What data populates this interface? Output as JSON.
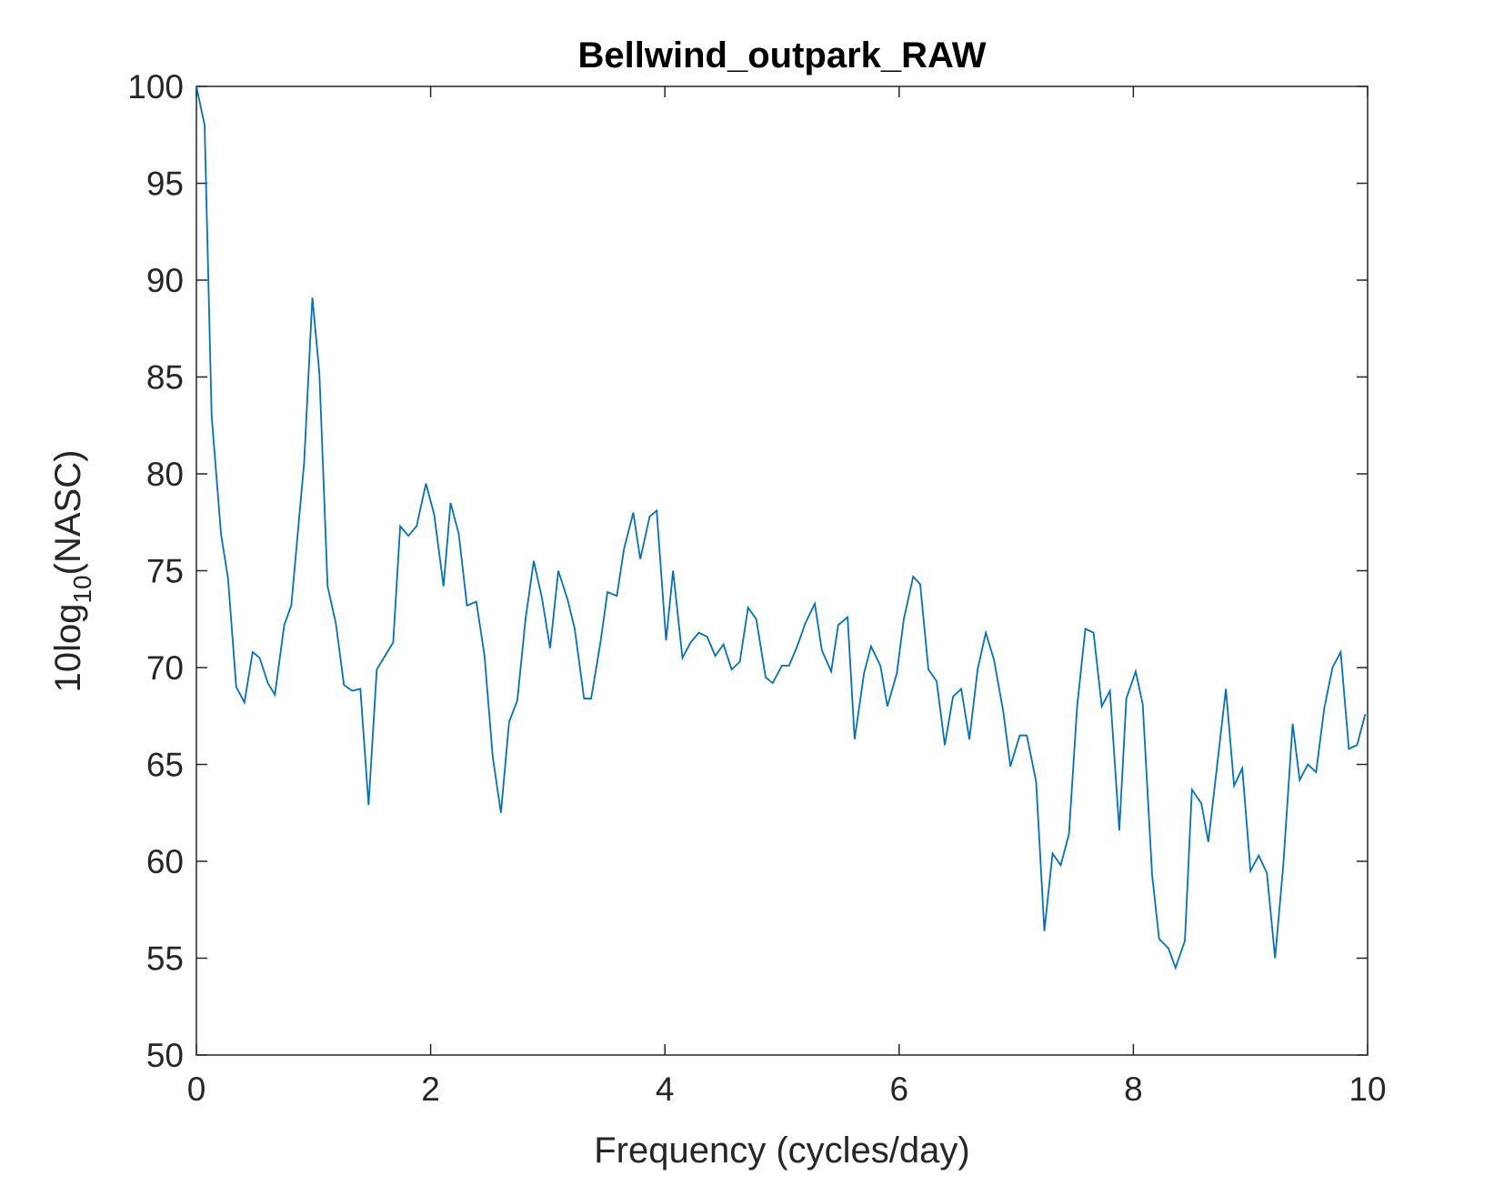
{
  "chart_data": {
    "type": "line",
    "title": "Bellwind_outpark_RAW",
    "xlabel": "Frequency (cycles/day)",
    "ylabel": [
      "10log",
      "10",
      "(NASC)"
    ],
    "color": "#0072bd",
    "xlim": [
      0,
      10
    ],
    "xticks": [
      0,
      2,
      4,
      6,
      8,
      10
    ],
    "ylim": [
      50,
      100
    ],
    "yticks": [
      50,
      55,
      60,
      65,
      70,
      75,
      80,
      85,
      90,
      95,
      100
    ],
    "grid": false,
    "x": [
      0,
      0.07,
      0.13,
      0.21,
      0.27,
      0.34,
      0.41,
      0.48,
      0.54,
      0.61,
      0.67,
      0.75,
      0.81,
      0.92,
      0.99,
      1.05,
      1.12,
      1.19,
      1.26,
      1.33,
      1.4,
      1.47,
      1.54,
      1.6,
      1.68,
      1.74,
      1.81,
      1.88,
      1.96,
      2.03,
      2.11,
      2.17,
      2.24,
      2.31,
      2.39,
      2.46,
      2.53,
      2.6,
      2.67,
      2.74,
      2.81,
      2.88,
      2.95,
      3.02,
      3.09,
      3.17,
      3.23,
      3.31,
      3.37,
      3.45,
      3.51,
      3.59,
      3.65,
      3.73,
      3.79,
      3.87,
      3.93,
      4.01,
      4.07,
      4.15,
      4.22,
      4.29,
      4.36,
      4.43,
      4.5,
      4.57,
      4.64,
      4.71,
      4.78,
      4.86,
      4.92,
      5.0,
      5.06,
      5.13,
      5.2,
      5.28,
      5.34,
      5.42,
      5.48,
      5.56,
      5.62,
      5.7,
      5.76,
      5.84,
      5.9,
      5.98,
      6.04,
      6.12,
      6.18,
      6.25,
      6.32,
      6.39,
      6.46,
      6.53,
      6.6,
      6.67,
      6.74,
      6.81,
      6.89,
      6.95,
      7.03,
      7.09,
      7.17,
      7.24,
      7.31,
      7.38,
      7.45,
      7.52,
      7.59,
      7.66,
      7.73,
      7.8,
      7.88,
      7.94,
      8.02,
      8.08,
      8.16,
      8.22,
      8.3,
      8.36,
      8.44,
      8.5,
      8.58,
      8.64,
      8.72,
      8.79,
      8.86,
      8.93,
      9.0,
      9.07,
      9.14,
      9.21,
      9.28,
      9.36,
      9.42,
      9.49,
      9.56,
      9.63,
      9.7,
      9.77,
      9.84,
      9.91,
      9.98
    ],
    "values": [
      100,
      98,
      83,
      76.9,
      74.6,
      69,
      68.2,
      70.8,
      70.5,
      69.2,
      68.6,
      72.2,
      73.2,
      80.6,
      89.1,
      85.2,
      74.2,
      72.3,
      69.1,
      68.8,
      68.9,
      62.9,
      69.9,
      70.5,
      71.3,
      77.3,
      76.8,
      77.3,
      79.5,
      77.9,
      74.2,
      78.5,
      76.9,
      73.2,
      73.4,
      70.6,
      65.4,
      62.5,
      67.2,
      68.3,
      72.5,
      75.5,
      73.6,
      71.0,
      75.0,
      73.5,
      72.0,
      68.4,
      68.4,
      71.3,
      73.9,
      73.7,
      76.1,
      78.0,
      75.6,
      77.8,
      78.1,
      71.4,
      75.0,
      70.5,
      71.3,
      71.8,
      71.6,
      70.6,
      71.2,
      69.9,
      70.3,
      73.1,
      72.5,
      69.5,
      69.2,
      70.1,
      70.1,
      71.1,
      72.3,
      73.3,
      70.9,
      69.8,
      72.2,
      72.6,
      66.3,
      69.7,
      71.1,
      70.1,
      68.0,
      69.7,
      72.5,
      74.7,
      74.3,
      69.9,
      69.3,
      66.0,
      68.5,
      68.9,
      66.3,
      69.9,
      71.8,
      70.4,
      67.7,
      64.9,
      66.5,
      66.5,
      64.1,
      56.4,
      60.4,
      59.8,
      61.4,
      68.0,
      72.0,
      71.8,
      68.0,
      68.8,
      61.6,
      68.4,
      69.8,
      68.1,
      59.3,
      56.0,
      55.5,
      54.5,
      55.9,
      63.7,
      63.0,
      61.0,
      65.2,
      68.9,
      63.9,
      64.8,
      59.5,
      60.3,
      59.4,
      55.0,
      59.8,
      67.1,
      64.2,
      65.0,
      64.6,
      67.9,
      70.0,
      70.8,
      65.8,
      66.0,
      67.6
    ]
  }
}
